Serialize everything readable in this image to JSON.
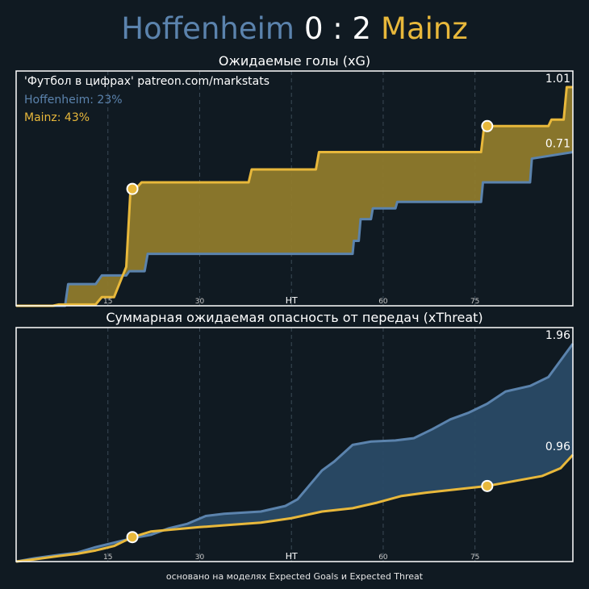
{
  "header": {
    "home": "Hoffenheim",
    "score": "0 : 2",
    "away": "Mainz"
  },
  "colors": {
    "home": "#5b83ad",
    "away": "#e8b83b",
    "background": "#101a22",
    "axis": "#ffffff",
    "grid": "#3b4a56"
  },
  "chart_data": [
    {
      "type": "area",
      "title": "Ожидаемые голы (xG)",
      "source_text": "'Футбол в цифрах' patreon.com/markstats",
      "legend": [
        {
          "team": "Hoffenheim",
          "label": "Hoffenheim: 23%",
          "color": "#5b83ad"
        },
        {
          "team": "Mainz",
          "label": "Mainz: 43%",
          "color": "#e8b83b"
        }
      ],
      "x_ticks": [
        {
          "x": 15,
          "label": "15"
        },
        {
          "x": 30,
          "label": "30"
        },
        {
          "x": 45,
          "label": "HT"
        },
        {
          "x": 60,
          "label": "60"
        },
        {
          "x": 75,
          "label": "75"
        }
      ],
      "xlim": [
        0,
        91
      ],
      "ylim": [
        0,
        1.01
      ],
      "end_labels": [
        {
          "value": 1.01,
          "label": "1.01"
        },
        {
          "value": 0.71,
          "label": "0.71"
        }
      ],
      "series": [
        {
          "name": "Hoffenheim",
          "color": "#5b83ad",
          "points": [
            [
              0,
              0
            ],
            [
              8,
              0
            ],
            [
              8.5,
              0.1
            ],
            [
              13,
              0.1
            ],
            [
              14,
              0.14
            ],
            [
              18,
              0.14
            ],
            [
              18.5,
              0.16
            ],
            [
              21,
              0.16
            ],
            [
              21.5,
              0.24
            ],
            [
              55,
              0.24
            ],
            [
              55.2,
              0.3
            ],
            [
              56,
              0.3
            ],
            [
              56.3,
              0.4
            ],
            [
              58,
              0.4
            ],
            [
              58.3,
              0.45
            ],
            [
              62,
              0.45
            ],
            [
              62.3,
              0.48
            ],
            [
              76,
              0.48
            ],
            [
              76.3,
              0.57
            ],
            [
              84,
              0.57
            ],
            [
              84.3,
              0.68
            ],
            [
              91,
              0.71
            ]
          ]
        },
        {
          "name": "Mainz",
          "color": "#e8b83b",
          "points": [
            [
              0,
              0
            ],
            [
              6,
              0
            ],
            [
              7,
              0.006
            ],
            [
              13,
              0.006
            ],
            [
              14,
              0.04
            ],
            [
              16,
              0.04
            ],
            [
              17,
              0.11
            ],
            [
              18,
              0.18
            ],
            [
              18.7,
              0.54
            ],
            [
              19.5,
              0.54
            ],
            [
              20.5,
              0.57
            ],
            [
              38,
              0.57
            ],
            [
              38.5,
              0.63
            ],
            [
              49,
              0.63
            ],
            [
              49.5,
              0.71
            ],
            [
              76,
              0.71
            ],
            [
              76.5,
              0.83
            ],
            [
              87,
              0.83
            ],
            [
              87.5,
              0.86
            ],
            [
              89.5,
              0.86
            ],
            [
              90,
              1.01
            ],
            [
              91,
              1.01
            ]
          ]
        }
      ],
      "markers": [
        {
          "team": "Mainz",
          "x": 19,
          "y": 0.54
        },
        {
          "team": "Mainz",
          "x": 77,
          "y": 0.83
        }
      ]
    },
    {
      "type": "area",
      "title": "Суммарная ожидаемая опасность от передач (xThreat)",
      "x_ticks": [
        {
          "x": 15,
          "label": "15"
        },
        {
          "x": 30,
          "label": "30"
        },
        {
          "x": 45,
          "label": "HT"
        },
        {
          "x": 60,
          "label": "60"
        },
        {
          "x": 75,
          "label": "75"
        }
      ],
      "xlim": [
        0,
        91
      ],
      "ylim": [
        0,
        1.96
      ],
      "end_labels": [
        {
          "value": 1.96,
          "label": "1.96"
        },
        {
          "value": 0.96,
          "label": "0.96"
        }
      ],
      "series": [
        {
          "name": "Hoffenheim",
          "color": "#5b83ad",
          "points": [
            [
              0,
              0
            ],
            [
              3,
              0.03
            ],
            [
              7,
              0.06
            ],
            [
              10,
              0.08
            ],
            [
              13,
              0.13
            ],
            [
              16,
              0.17
            ],
            [
              19,
              0.21
            ],
            [
              22,
              0.24
            ],
            [
              25,
              0.3
            ],
            [
              28,
              0.34
            ],
            [
              31,
              0.41
            ],
            [
              34,
              0.43
            ],
            [
              37,
              0.44
            ],
            [
              40,
              0.45
            ],
            [
              44,
              0.5
            ],
            [
              46,
              0.56
            ],
            [
              48,
              0.69
            ],
            [
              50,
              0.82
            ],
            [
              52,
              0.9
            ],
            [
              55,
              1.05
            ],
            [
              58,
              1.08
            ],
            [
              62,
              1.09
            ],
            [
              65,
              1.11
            ],
            [
              68,
              1.19
            ],
            [
              71,
              1.28
            ],
            [
              74,
              1.34
            ],
            [
              77,
              1.42
            ],
            [
              80,
              1.53
            ],
            [
              84,
              1.58
            ],
            [
              87,
              1.66
            ],
            [
              91,
              1.96
            ]
          ]
        },
        {
          "name": "Mainz",
          "color": "#e8b83b",
          "points": [
            [
              0,
              0
            ],
            [
              3,
              0.02
            ],
            [
              7,
              0.05
            ],
            [
              10,
              0.07
            ],
            [
              13,
              0.1
            ],
            [
              16,
              0.14
            ],
            [
              19,
              0.22
            ],
            [
              22,
              0.27
            ],
            [
              26,
              0.29
            ],
            [
              30,
              0.31
            ],
            [
              35,
              0.33
            ],
            [
              40,
              0.35
            ],
            [
              45,
              0.39
            ],
            [
              50,
              0.45
            ],
            [
              55,
              0.48
            ],
            [
              59,
              0.53
            ],
            [
              63,
              0.59
            ],
            [
              67,
              0.62
            ],
            [
              72,
              0.65
            ],
            [
              77,
              0.68
            ],
            [
              82,
              0.73
            ],
            [
              86,
              0.77
            ],
            [
              89,
              0.84
            ],
            [
              91,
              0.96
            ]
          ]
        }
      ],
      "markers": [
        {
          "team": "Mainz",
          "x": 19,
          "y": 0.22
        },
        {
          "team": "Mainz",
          "x": 77,
          "y": 0.68
        }
      ]
    }
  ],
  "footer": "основано на моделях Expected Goals и Expected Threat"
}
